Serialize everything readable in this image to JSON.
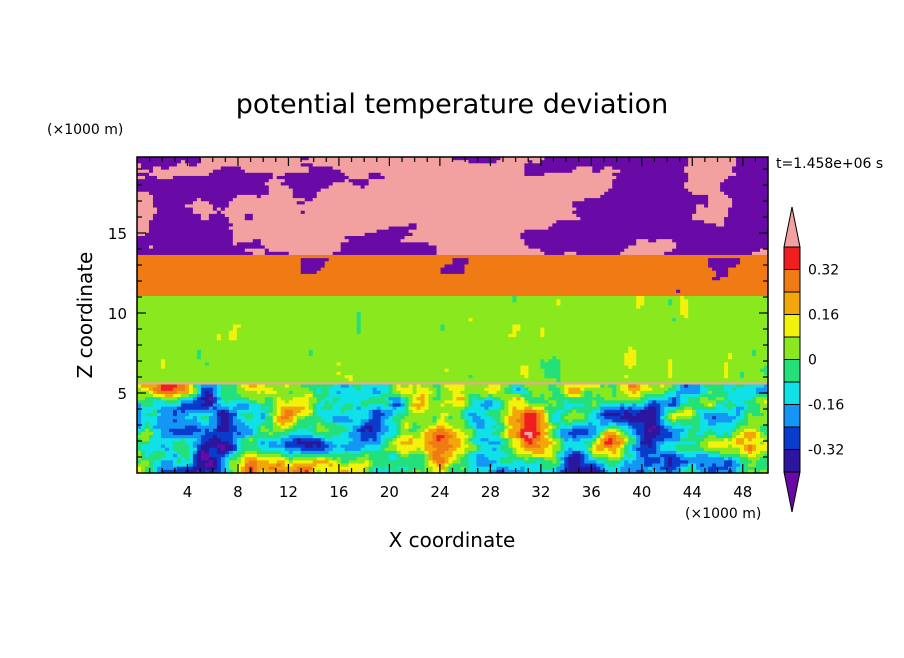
{
  "chart_data": {
    "type": "heatmap",
    "title": "potential temperature deviation",
    "time_label": "t=1.458e+06 s",
    "xlabel": "X coordinate",
    "ylabel": "Z coordinate",
    "x_unit": "(×1000 m)",
    "y_unit": "(×1000 m)",
    "xlim": [
      0,
      50
    ],
    "ylim": [
      0,
      19.75
    ],
    "x_ticks": [
      4,
      8,
      12,
      16,
      20,
      24,
      28,
      32,
      36,
      40,
      44,
      48
    ],
    "y_ticks": [
      5,
      10,
      15
    ],
    "colorbar": {
      "levels": [
        -0.4,
        -0.32,
        -0.24,
        -0.16,
        -0.08,
        0,
        0.08,
        0.16,
        0.24,
        0.32,
        0.4
      ],
      "labeled_levels": [
        "0.32",
        "0.16",
        "0",
        "-0.16",
        "-0.32"
      ],
      "label_values": [
        0.32,
        0.16,
        0,
        -0.16,
        -0.32
      ],
      "colors": [
        "#6a0aa6",
        "#2b169d",
        "#0a3ccc",
        "#1596f5",
        "#10e0e8",
        "#24e07a",
        "#8ae81e",
        "#f2f20a",
        "#f2a60a",
        "#f07a14",
        "#f01e1e",
        "#f2a0a0"
      ],
      "under_color": "#6a0aa6",
      "over_color": "#f2a0a0"
    },
    "colors": {
      "upper_layer_high": "#f2a0a0",
      "upper_layer_low": "#6a0aa6",
      "stable_band": "#f07a14",
      "mid_layer": "#24e07a",
      "mid_layer_alt": "#8ae81e"
    }
  }
}
